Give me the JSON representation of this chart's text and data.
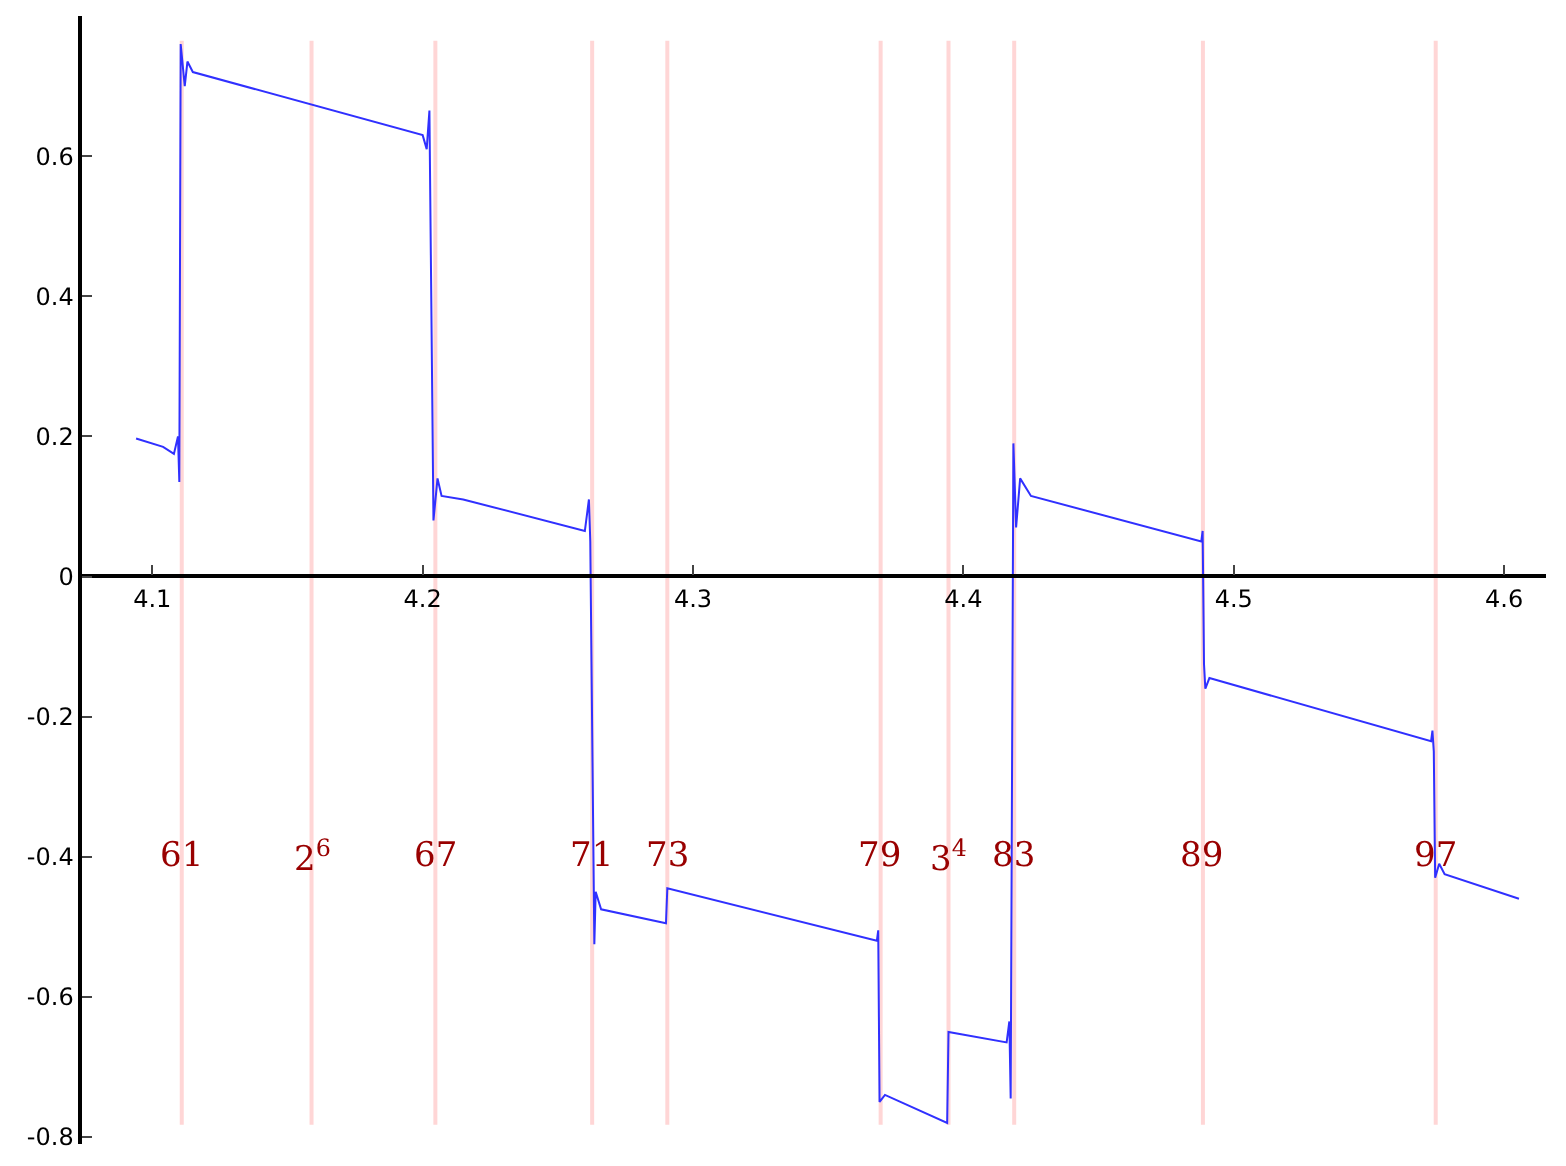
{
  "chart_data": {
    "type": "line",
    "x": [
      4.094,
      4.104,
      4.108,
      4.1095,
      4.11,
      4.1105,
      4.112,
      4.113,
      4.115,
      4.2,
      4.2015,
      4.2025,
      4.204,
      4.2055,
      4.207,
      4.215,
      4.26,
      4.2615,
      4.262,
      4.2635,
      4.264,
      4.266,
      4.29,
      4.2905,
      4.368,
      4.3685,
      4.369,
      4.371,
      4.394,
      4.3945,
      4.416,
      4.417,
      4.4175,
      4.4185,
      4.4195,
      4.421,
      4.425,
      4.488,
      4.4885,
      4.489,
      4.4895,
      4.491,
      4.573,
      4.5735,
      4.574,
      4.5745,
      4.576,
      4.578,
      4.6055
    ],
    "series": [
      {
        "color": "#3030ff",
        "values": [
          0.197,
          0.185,
          0.175,
          0.2,
          0.135,
          0.76,
          0.7,
          0.735,
          0.72,
          0.63,
          0.61,
          0.665,
          0.08,
          0.14,
          0.115,
          0.11,
          0.065,
          0.11,
          0.05,
          -0.525,
          -0.45,
          -0.475,
          -0.495,
          -0.445,
          -0.52,
          -0.505,
          -0.75,
          -0.74,
          -0.78,
          -0.65,
          -0.665,
          -0.635,
          -0.745,
          0.19,
          0.07,
          0.14,
          0.115,
          0.05,
          0.065,
          -0.125,
          -0.16,
          -0.145,
          -0.235,
          -0.22,
          -0.25,
          -0.43,
          -0.41,
          -0.425,
          -0.46
        ]
      }
    ],
    "xlim": [
      4.074,
      4.6155
    ],
    "ylim": [
      -0.81,
      0.8
    ],
    "xticks": [
      4.1,
      4.2,
      4.3,
      4.4,
      4.5,
      4.6
    ],
    "yticks": [
      -0.8,
      -0.6,
      -0.4,
      -0.2,
      0,
      0.2,
      0.4,
      0.6
    ],
    "line_style": "solid",
    "ref_lines": [
      {
        "axis": "x",
        "value": 4.1109,
        "color": "#ffd6d6"
      },
      {
        "axis": "x",
        "value": 4.1589,
        "color": "#ffd6d6"
      },
      {
        "axis": "x",
        "value": 4.2047,
        "color": "#ffd6d6"
      },
      {
        "axis": "x",
        "value": 4.2627,
        "color": "#ffd6d6"
      },
      {
        "axis": "x",
        "value": 4.2905,
        "color": "#ffd6d6"
      },
      {
        "axis": "x",
        "value": 4.3694,
        "color": "#ffd6d6"
      },
      {
        "axis": "x",
        "value": 4.3945,
        "color": "#ffd6d6"
      },
      {
        "axis": "x",
        "value": 4.4188,
        "color": "#ffd6d6"
      },
      {
        "axis": "x",
        "value": 4.4886,
        "color": "#ffd6d6"
      },
      {
        "axis": "x",
        "value": 4.5747,
        "color": "#ffd6d6"
      }
    ],
    "annotations": [
      {
        "text": "61",
        "x": 4.1109,
        "y": -0.4
      },
      {
        "text": "2$^{6}$",
        "x": 4.1589,
        "y": -0.4
      },
      {
        "text": "67",
        "x": 4.2047,
        "y": -0.4
      },
      {
        "text": "71",
        "x": 4.2627,
        "y": -0.4
      },
      {
        "text": "73",
        "x": 4.2905,
        "y": -0.4
      },
      {
        "text": "79",
        "x": 4.3694,
        "y": -0.4
      },
      {
        "text": "3$^{4}$",
        "x": 4.3945,
        "y": -0.4
      },
      {
        "text": "83",
        "x": 4.4188,
        "y": -0.4
      },
      {
        "text": "89",
        "x": 4.4886,
        "y": -0.4
      },
      {
        "text": "97",
        "x": 4.5747,
        "y": -0.4
      }
    ]
  }
}
